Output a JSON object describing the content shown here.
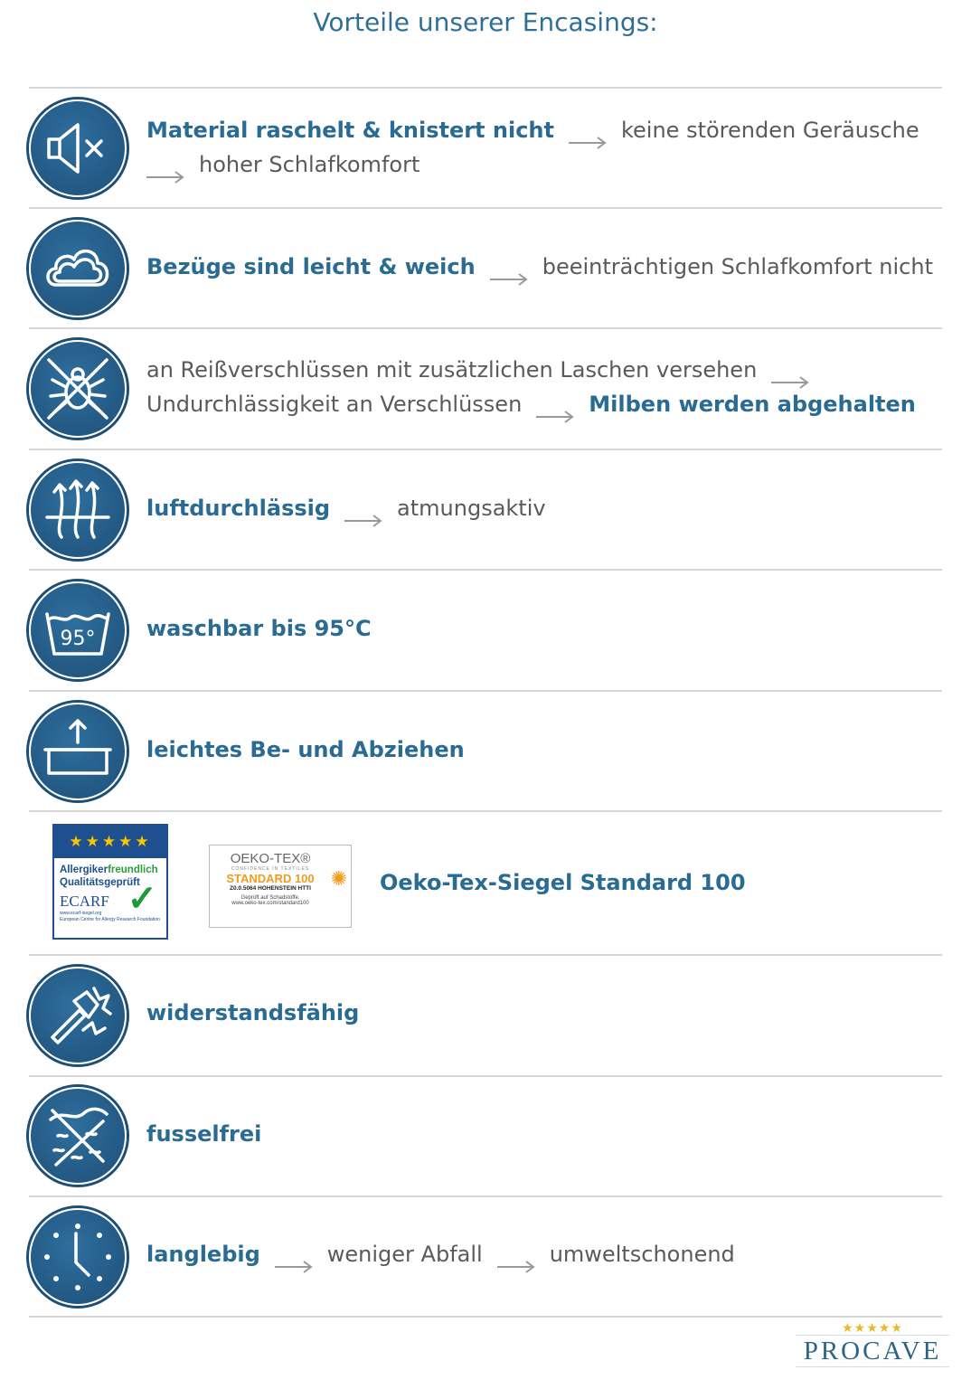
{
  "title": "Vorteile unserer Encasings:",
  "rows": [
    {
      "icon": "speaker-mute-icon",
      "l1a": "Material raschelt & knistert nicht",
      "l1b": "keine störenden Geräusche",
      "l2a": "hoher Schlafkomfort"
    },
    {
      "icon": "cloud-icon",
      "a": "Bezüge sind leicht & weich",
      "b": "beeinträchtigen Schlafkomfort nicht"
    },
    {
      "icon": "mite-crossed-icon",
      "l1a": "an Reißverschlüssen mit zusätzlichen Laschen versehen",
      "l2a": "Undurchlässigkeit an Verschlüssen",
      "l2b": "Milben werden abgehalten"
    },
    {
      "icon": "airflow-icon",
      "a": "luftdurchlässig",
      "b": "atmungsaktiv"
    },
    {
      "icon": "wash-95-icon",
      "a": "waschbar bis 95°C",
      "iconText": "95°"
    },
    {
      "icon": "box-arrow-up-icon",
      "a": "leichtes Be- und Abziehen"
    },
    {
      "a": "Oeko-Tex-Siegel Standard 100"
    },
    {
      "icon": "hammer-icon",
      "a": "widerstandsfähig"
    },
    {
      "icon": "lint-crossed-icon",
      "a": "fusselfrei"
    },
    {
      "icon": "clock-icon",
      "a": "langlebig",
      "b": "weniger Abfall",
      "c": "umweltschonend"
    }
  ],
  "ecarf": {
    "line1a": "Allergiker",
    "line1b": "freundlich",
    "line2": "Qualitätsgeprüft",
    "brand": "ECARF",
    "url": "www.ecarf-siegel.org",
    "foundation": "European Centre for Allergy Research Foundation"
  },
  "oekotex": {
    "brand": "OEKO-TEX®",
    "tagline": "CONFIDENCE IN TEXTILES",
    "standard": "STANDARD 100",
    "cert": "Z0.0.5064 HOHENSTEIN HTTI",
    "tested": "Geprüft auf Schadstoffe.",
    "url": "www.oeko-tex.com/standard100"
  },
  "logo": {
    "name": "PROCAVE"
  },
  "colors": {
    "accent": "#2a6b94",
    "text": "#5a5a5a",
    "icon_bg": "#1d4e76"
  }
}
